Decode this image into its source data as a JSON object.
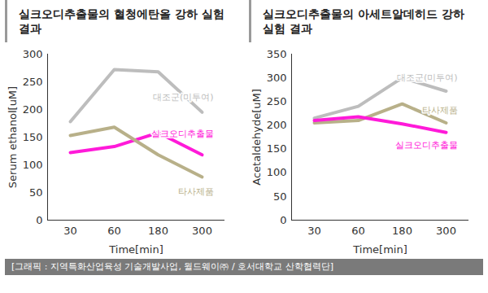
{
  "chart_data": [
    {
      "type": "line",
      "title": "실크오디추출물의 혈청에탄올 강하 실험 결과",
      "x_label": "Time[min]",
      "y_label": "Serum ethanol[uM]",
      "categories": [
        30,
        60,
        180,
        300
      ],
      "ylim": [
        0,
        300
      ],
      "yticks": [
        0,
        50,
        100,
        150,
        200,
        250,
        300
      ],
      "grid": false,
      "series": [
        {
          "name": "대조군(미투여)",
          "color": "#bdbdbd",
          "values": [
            178,
            272,
            268,
            195
          ]
        },
        {
          "name": "실크오디추출물",
          "color": "#ff1ad9",
          "values": [
            122,
            133,
            158,
            118
          ]
        },
        {
          "name": "타사제품",
          "color": "#b8b089",
          "values": [
            153,
            168,
            118,
            78
          ]
        }
      ]
    },
    {
      "type": "line",
      "title": "실크오디추출물의 아세트알데히드 강하 실험 결과",
      "x_label": "Time[min]",
      "y_label": "Acetaldehyde[uM]",
      "categories": [
        30,
        60,
        180,
        300
      ],
      "ylim": [
        0,
        350
      ],
      "yticks": [
        0,
        50,
        100,
        150,
        200,
        250,
        300,
        350
      ],
      "grid": false,
      "series": [
        {
          "name": "대조군(미투여)",
          "color": "#bdbdbd",
          "values": [
            215,
            240,
            300,
            272
          ]
        },
        {
          "name": "타사제품",
          "color": "#b8b089",
          "values": [
            205,
            210,
            245,
            205
          ]
        },
        {
          "name": "실크오디추출물",
          "color": "#ff1ad9",
          "values": [
            210,
            218,
            203,
            185
          ]
        }
      ]
    }
  ],
  "caption": "[그래픽 : 지역특화산업육성 기술개발사업, 월드웨이㈜ / 호서대학교 산학협력단]"
}
